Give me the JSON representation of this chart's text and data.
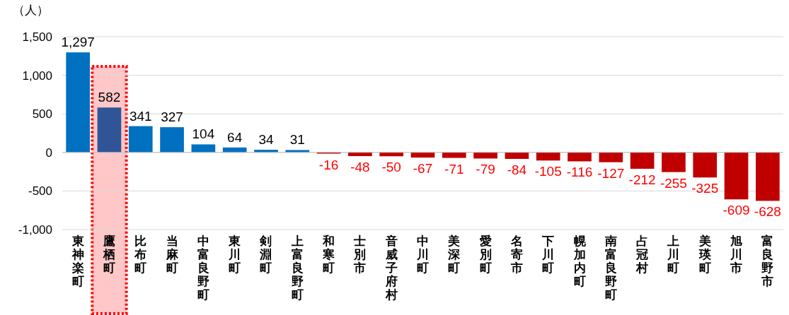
{
  "chart_data": {
    "type": "bar",
    "ylabel": "（人）",
    "categories": [
      "東神楽町",
      "鷹栖町",
      "比布町",
      "当麻町",
      "中富良野町",
      "東川町",
      "剣淵町",
      "上富良野町",
      "和寒町",
      "士別市",
      "音威子府村",
      "中川町",
      "美深町",
      "愛別町",
      "名寄市",
      "下川町",
      "幌加内町",
      "南富良野町",
      "占冠村",
      "上川町",
      "美瑛町",
      "旭川市",
      "富良野市"
    ],
    "values": [
      1297,
      582,
      341,
      327,
      104,
      64,
      34,
      31,
      -16,
      -48,
      -50,
      -67,
      -71,
      -79,
      -84,
      -105,
      -116,
      -127,
      -212,
      -255,
      -325,
      -609,
      -628
    ],
    "colors": [
      "#0070c0",
      "#2f5597",
      "#0070c0",
      "#0070c0",
      "#0070c0",
      "#0070c0",
      "#0070c0",
      "#0070c0",
      "#c00000",
      "#c00000",
      "#c00000",
      "#c00000",
      "#c00000",
      "#c00000",
      "#c00000",
      "#c00000",
      "#c00000",
      "#c00000",
      "#c00000",
      "#c00000",
      "#c00000",
      "#c00000",
      "#c00000"
    ],
    "ylim": [
      -1000,
      1500
    ],
    "yticks": [
      {
        "value": -1000,
        "label": "-1,000"
      },
      {
        "value": -500,
        "label": "-500"
      },
      0,
      {
        "value": 500,
        "label": "500"
      },
      {
        "value": 1000,
        "label": "1,000"
      },
      {
        "value": 1500,
        "label": "1,500"
      }
    ],
    "grid": "y",
    "value_labels": [
      "1,297",
      "582",
      "341",
      "327",
      "104",
      "64",
      "34",
      "31",
      "-16",
      "-48",
      "-50",
      "-67",
      "-71",
      "-79",
      "-84",
      "-105",
      "-116",
      "-127",
      "-212",
      "-255",
      "-325",
      "-609",
      "-628"
    ],
    "bands": [
      {
        "axis": "x",
        "from": "鷹栖町",
        "to": "鷹栖町",
        "color": "#ff0000"
      }
    ]
  }
}
